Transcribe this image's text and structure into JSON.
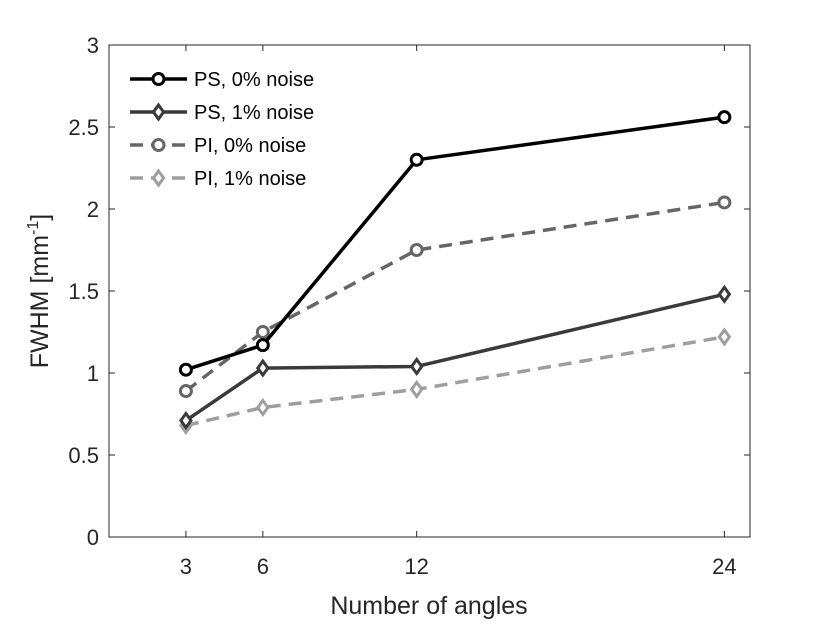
{
  "chart_data": {
    "type": "line",
    "title": "",
    "xlabel": "Number of angles",
    "ylabel": {
      "base": "FWHM [mm",
      "superscript": "-1",
      "close": "]"
    },
    "x": [
      3,
      6,
      12,
      24
    ],
    "x_ticks": [
      "3",
      "6",
      "12",
      "24"
    ],
    "xlim": [
      0,
      25
    ],
    "ylim": [
      0,
      3
    ],
    "y_ticks": [
      "0",
      "0.5",
      "1",
      "1.5",
      "2",
      "2.5",
      "3"
    ],
    "grid": false,
    "legend_position": "top-left",
    "series": [
      {
        "name": "PS, 0% noise",
        "values": [
          1.02,
          1.17,
          2.3,
          2.56
        ],
        "color": "#000000",
        "dash": "solid",
        "marker": "circle"
      },
      {
        "name": "PS, 1% noise",
        "values": [
          0.71,
          1.03,
          1.04,
          1.48
        ],
        "color": "#3a3a3a",
        "dash": "solid",
        "marker": "diamond"
      },
      {
        "name": "PI, 0% noise",
        "values": [
          0.89,
          1.25,
          1.75,
          2.04
        ],
        "color": "#666666",
        "dash": "dashed",
        "marker": "circle"
      },
      {
        "name": "PI, 1% noise",
        "values": [
          0.68,
          0.79,
          0.9,
          1.22
        ],
        "color": "#9e9e9e",
        "dash": "dashed",
        "marker": "diamond"
      }
    ]
  }
}
